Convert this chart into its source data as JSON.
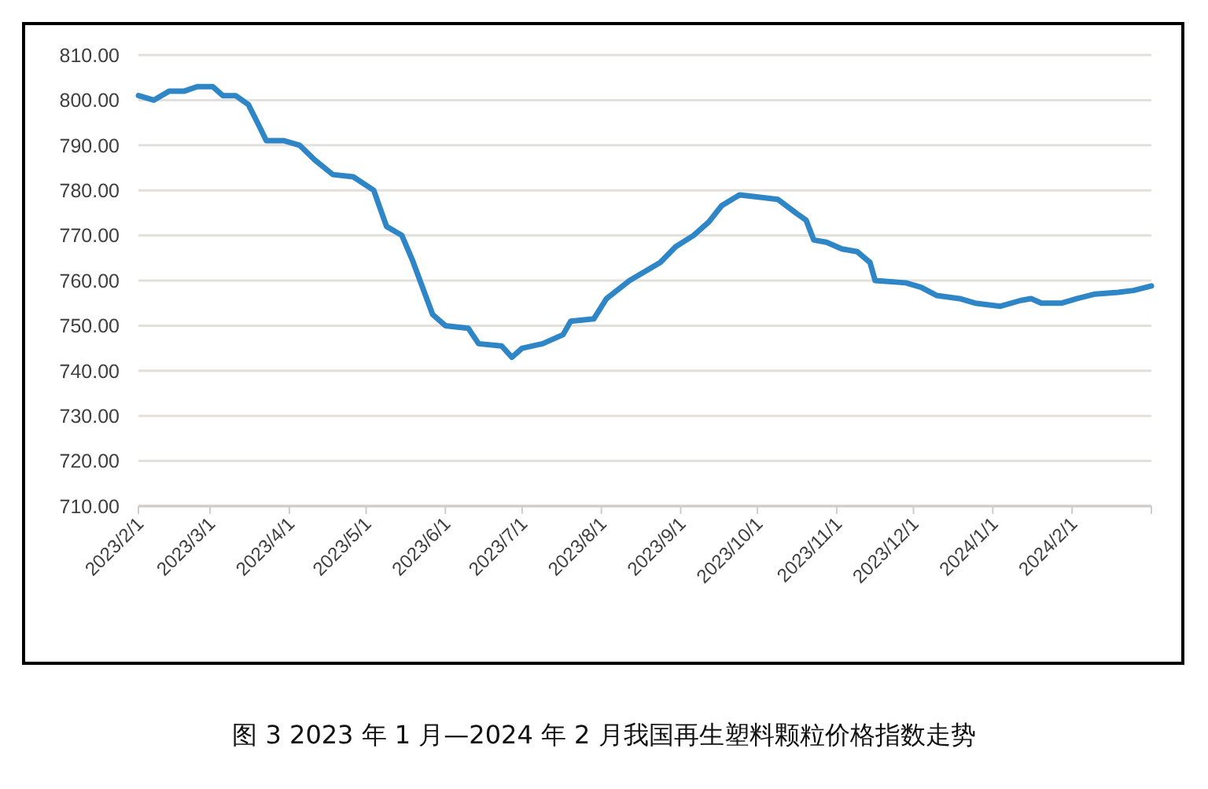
{
  "chart_data": {
    "type": "line",
    "title": "图 3  2023 年 1 月—2024 年 2 月我国再生塑料颗粒价格指数走势",
    "xlim": [
      "2023-02-01",
      "2024-03-03"
    ],
    "xticks": [
      {
        "value": "2023-02-01",
        "label": "2023/2/1"
      },
      {
        "value": "2023-03-01",
        "label": "2023/3/1"
      },
      {
        "value": "2023-04-01",
        "label": "2023/4/1"
      },
      {
        "value": "2023-05-01",
        "label": "2023/5/1"
      },
      {
        "value": "2023-06-01",
        "label": "2023/6/1"
      },
      {
        "value": "2023-07-01",
        "label": "2023/7/1"
      },
      {
        "value": "2023-08-01",
        "label": "2023/8/1"
      },
      {
        "value": "2023-09-01",
        "label": "2023/9/1"
      },
      {
        "value": "2023-10-01",
        "label": "2023/10/1"
      },
      {
        "value": "2023-11-01",
        "label": "2023/11/1"
      },
      {
        "value": "2023-12-01",
        "label": "2023/12/1"
      },
      {
        "value": "2024-01-01",
        "label": "2024/1/1"
      },
      {
        "value": "2024-02-01",
        "label": "2024/2/1"
      }
    ],
    "ylim": [
      710,
      810
    ],
    "yticks": [
      {
        "value": 710,
        "label": "710.00"
      },
      {
        "value": 720,
        "label": "720.00"
      },
      {
        "value": 730,
        "label": "730.00"
      },
      {
        "value": 740,
        "label": "740.00"
      },
      {
        "value": 750,
        "label": "750.00"
      },
      {
        "value": 760,
        "label": "760.00"
      },
      {
        "value": 770,
        "label": "770.00"
      },
      {
        "value": 780,
        "label": "780.00"
      },
      {
        "value": 790,
        "label": "790.00"
      },
      {
        "value": 800,
        "label": "800.00"
      },
      {
        "value": 810,
        "label": "810.00"
      }
    ],
    "grid": "y",
    "x": [
      "2023-02-01",
      "2023-02-07",
      "2023-02-13",
      "2023-02-19",
      "2023-02-24",
      "2023-03-02",
      "2023-03-06",
      "2023-03-11",
      "2023-03-16",
      "2023-03-20",
      "2023-03-23",
      "2023-03-30",
      "2023-04-05",
      "2023-04-11",
      "2023-04-18",
      "2023-04-26",
      "2023-05-04",
      "2023-05-09",
      "2023-05-15",
      "2023-05-19",
      "2023-05-27",
      "2023-06-01",
      "2023-06-10",
      "2023-06-14",
      "2023-06-23",
      "2023-06-27",
      "2023-07-01",
      "2023-07-09",
      "2023-07-17",
      "2023-07-20",
      "2023-07-29",
      "2023-08-03",
      "2023-08-12",
      "2023-08-18",
      "2023-08-24",
      "2023-08-30",
      "2023-09-06",
      "2023-09-12",
      "2023-09-17",
      "2023-09-24",
      "2023-09-30",
      "2023-10-09",
      "2023-10-16",
      "2023-10-20",
      "2023-10-23",
      "2023-10-28",
      "2023-11-03",
      "2023-11-09",
      "2023-11-14",
      "2023-11-16",
      "2023-11-28",
      "2023-12-04",
      "2023-12-10",
      "2023-12-19",
      "2023-12-25",
      "2024-01-04",
      "2024-01-12",
      "2024-01-16",
      "2024-01-20",
      "2024-01-28",
      "2024-02-03",
      "2024-02-10",
      "2024-02-19",
      "2024-02-25",
      "2024-03-03"
    ],
    "series": [
      {
        "color": "#2e86c6",
        "values": [
          801,
          800,
          802,
          802,
          803,
          803,
          801,
          801,
          799,
          794.5,
          791,
          791,
          790,
          786.7,
          783.5,
          783,
          780,
          772,
          770,
          764.7,
          752.5,
          750,
          749.4,
          746,
          745.5,
          743,
          745,
          746,
          748,
          751,
          751.5,
          756,
          760,
          762,
          764,
          767.5,
          770,
          773,
          776.6,
          779,
          778.6,
          778,
          775,
          773.4,
          769,
          768.5,
          767,
          766.4,
          764,
          760,
          759.5,
          758.5,
          756.7,
          756,
          755,
          754.3,
          755.6,
          756,
          755,
          755,
          756,
          757,
          757.4,
          757.8,
          758.8
        ]
      }
    ]
  }
}
